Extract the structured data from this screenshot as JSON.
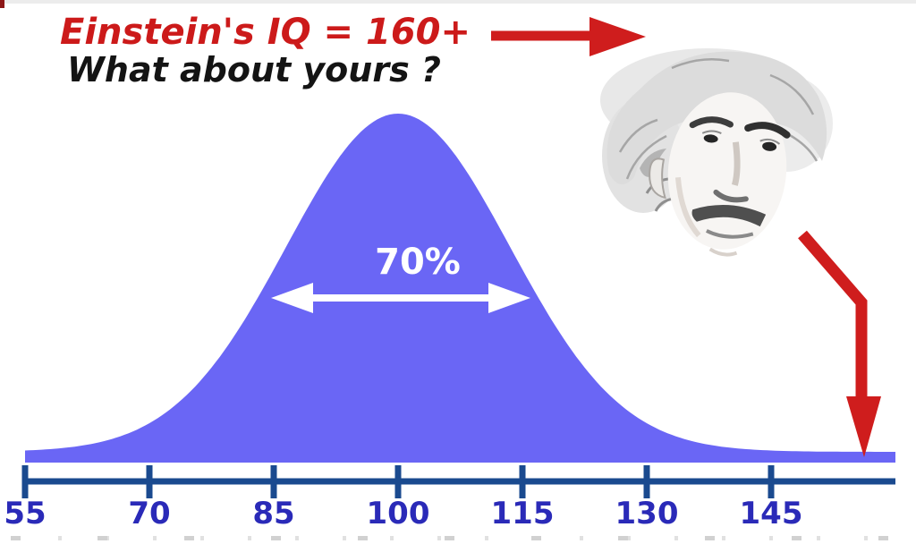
{
  "header": {
    "title": "Einstein's IQ = 160+",
    "subtitle": "What about yours ?"
  },
  "annotation": {
    "label": "70%"
  },
  "axis": {
    "tick_labels": [
      "55",
      "70",
      "85",
      "100",
      "115",
      "130",
      "145"
    ]
  },
  "colors": {
    "title_red": "#cc1a1a",
    "arrow_red": "#cf1d1d",
    "curve_fill": "#6a66f5",
    "axis_blue": "#1a4a8f",
    "tick_label_blue": "#2a2ab8",
    "white": "#ffffff",
    "subtitle_black": "#141414"
  },
  "icons": {
    "einstein_portrait": "einstein-face-sketch",
    "arrow_to_einstein": "red-arrow-right",
    "arrow_to_scale_end": "red-bent-arrow-down",
    "range_arrow": "white-double-headed-arrow"
  },
  "chart_data": {
    "type": "area",
    "title": "Einstein's IQ = 160+",
    "subtitle": "What about yours ?",
    "curve": "normal distribution (IQ bell curve)",
    "mean": 100,
    "x_ticks": [
      55,
      70,
      85,
      100,
      115,
      130,
      145
    ],
    "x_range": [
      55,
      160
    ],
    "xlabel": "",
    "ylabel": "",
    "grid": false,
    "legend": false,
    "annotations": [
      {
        "type": "range-arrow",
        "label": "70%",
        "from": 85,
        "to": 115
      },
      {
        "type": "arrow",
        "label": "Einstein's IQ = 160+",
        "points_to_x": 160
      }
    ]
  }
}
